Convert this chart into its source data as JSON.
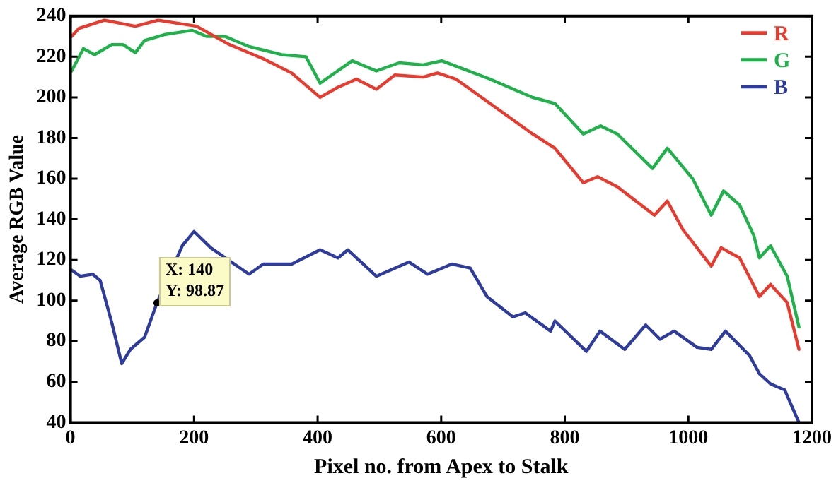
{
  "chart_data": {
    "type": "line",
    "xlabel": "Pixel no. from Apex to Stalk",
    "ylabel": "Average RGB Value",
    "xlim": [
      0,
      1200
    ],
    "xticks": [
      0,
      200,
      400,
      600,
      800,
      1000,
      1200
    ],
    "ylim": [
      40,
      240
    ],
    "yticks": [
      40,
      60,
      80,
      100,
      120,
      140,
      160,
      180,
      200,
      220,
      240
    ],
    "grid": false,
    "legend": "top right",
    "marker": "none",
    "line_style": "solid",
    "annotations": [
      {
        "text": "X: 140\nY: 98.87",
        "x": 140,
        "y": 98.87
      }
    ],
    "series": [
      {
        "name": "R",
        "color": "#ea3a2e",
        "x": [
          2,
          14,
          55,
          105,
          142,
          204,
          257,
          312,
          358,
          404,
          433,
          463,
          495,
          525,
          571,
          594,
          624,
          679,
          748,
          784,
          830,
          853,
          885,
          945,
          966,
          991,
          1037,
          1053,
          1083,
          1115,
          1133,
          1160,
          1179
        ],
        "values": [
          230,
          234,
          238,
          235,
          238,
          235,
          226,
          219,
          212,
          200,
          205,
          209,
          204,
          211,
          210,
          212,
          209,
          197,
          182,
          175,
          158,
          161,
          156,
          142,
          149,
          135,
          117,
          126,
          121,
          102,
          108,
          99,
          76
        ]
      },
      {
        "name": "G",
        "color": "#1fb24a",
        "x": [
          2,
          21,
          39,
          67,
          85,
          105,
          120,
          154,
          197,
          220,
          250,
          289,
          342,
          381,
          404,
          456,
          495,
          532,
          571,
          601,
          679,
          748,
          784,
          830,
          858,
          885,
          942,
          966,
          1007,
          1037,
          1057,
          1083,
          1106,
          1115,
          1133,
          1160,
          1179
        ],
        "values": [
          213,
          224,
          221,
          226,
          226,
          222,
          228,
          231,
          233,
          230,
          230,
          225,
          221,
          220,
          207,
          218,
          213,
          217,
          216,
          218,
          209,
          200,
          197,
          182,
          186,
          182,
          165,
          175,
          160,
          142,
          154,
          147,
          132,
          121,
          127,
          112,
          87
        ]
      },
      {
        "name": "B",
        "color": "#2e3ca0",
        "x": [
          2,
          16,
          36,
          48,
          67,
          83,
          97,
          120,
          140,
          181,
          200,
          227,
          289,
          312,
          358,
          404,
          433,
          449,
          495,
          548,
          578,
          617,
          647,
          674,
          716,
          736,
          777,
          784,
          835,
          857,
          897,
          931,
          954,
          977,
          1014,
          1037,
          1060,
          1099,
          1115,
          1133,
          1156,
          1179
        ],
        "values": [
          115,
          112,
          113,
          110,
          89,
          69,
          76,
          82,
          98.87,
          127,
          134,
          126,
          113,
          118,
          118,
          125,
          121,
          125,
          112,
          119,
          113,
          118,
          116,
          102,
          92,
          94,
          85,
          90,
          75,
          85,
          76,
          88,
          81,
          85,
          77,
          76,
          85,
          73,
          64,
          59,
          56,
          40
        ]
      }
    ]
  }
}
